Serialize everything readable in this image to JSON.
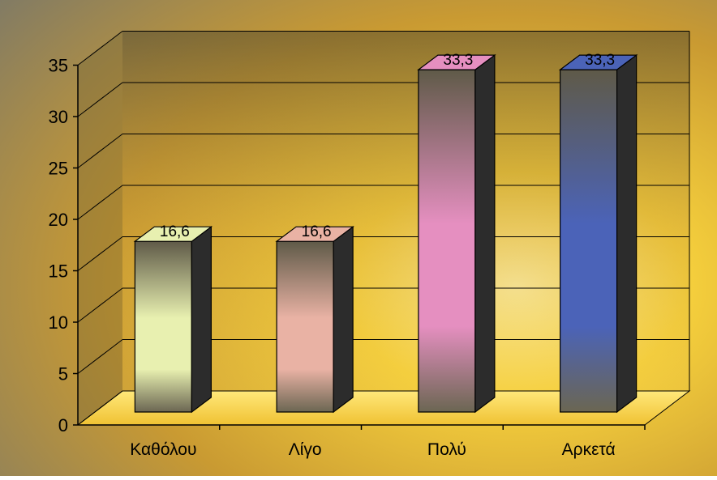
{
  "chart_data": {
    "type": "bar",
    "style": "3d-column",
    "categories": [
      "Καθόλου",
      "Λίγο",
      "Πολύ",
      "Αρκετά"
    ],
    "values": [
      16.6,
      16.6,
      33.3,
      33.3
    ],
    "data_labels": [
      "16,6",
      "16,6",
      "33,3",
      "33,3"
    ],
    "ylim": [
      0,
      35
    ],
    "yticks": [
      0,
      5,
      10,
      15,
      20,
      25,
      30,
      35
    ],
    "ytick_labels": [
      "0",
      "5",
      "10",
      "15",
      "20",
      "25",
      "30",
      "35"
    ],
    "grid": true,
    "legend": false,
    "title": "",
    "xlabel": "",
    "ylabel": "",
    "colors": {
      "background_outer": "#f2c23a",
      "background_dark": "#6b5a2e",
      "wall": "#7a6a35",
      "floor": "#f7d34a",
      "bars": [
        "#e8f0b0",
        "#e9b2a4",
        "#e58fc0",
        "#4b63b8"
      ]
    }
  }
}
